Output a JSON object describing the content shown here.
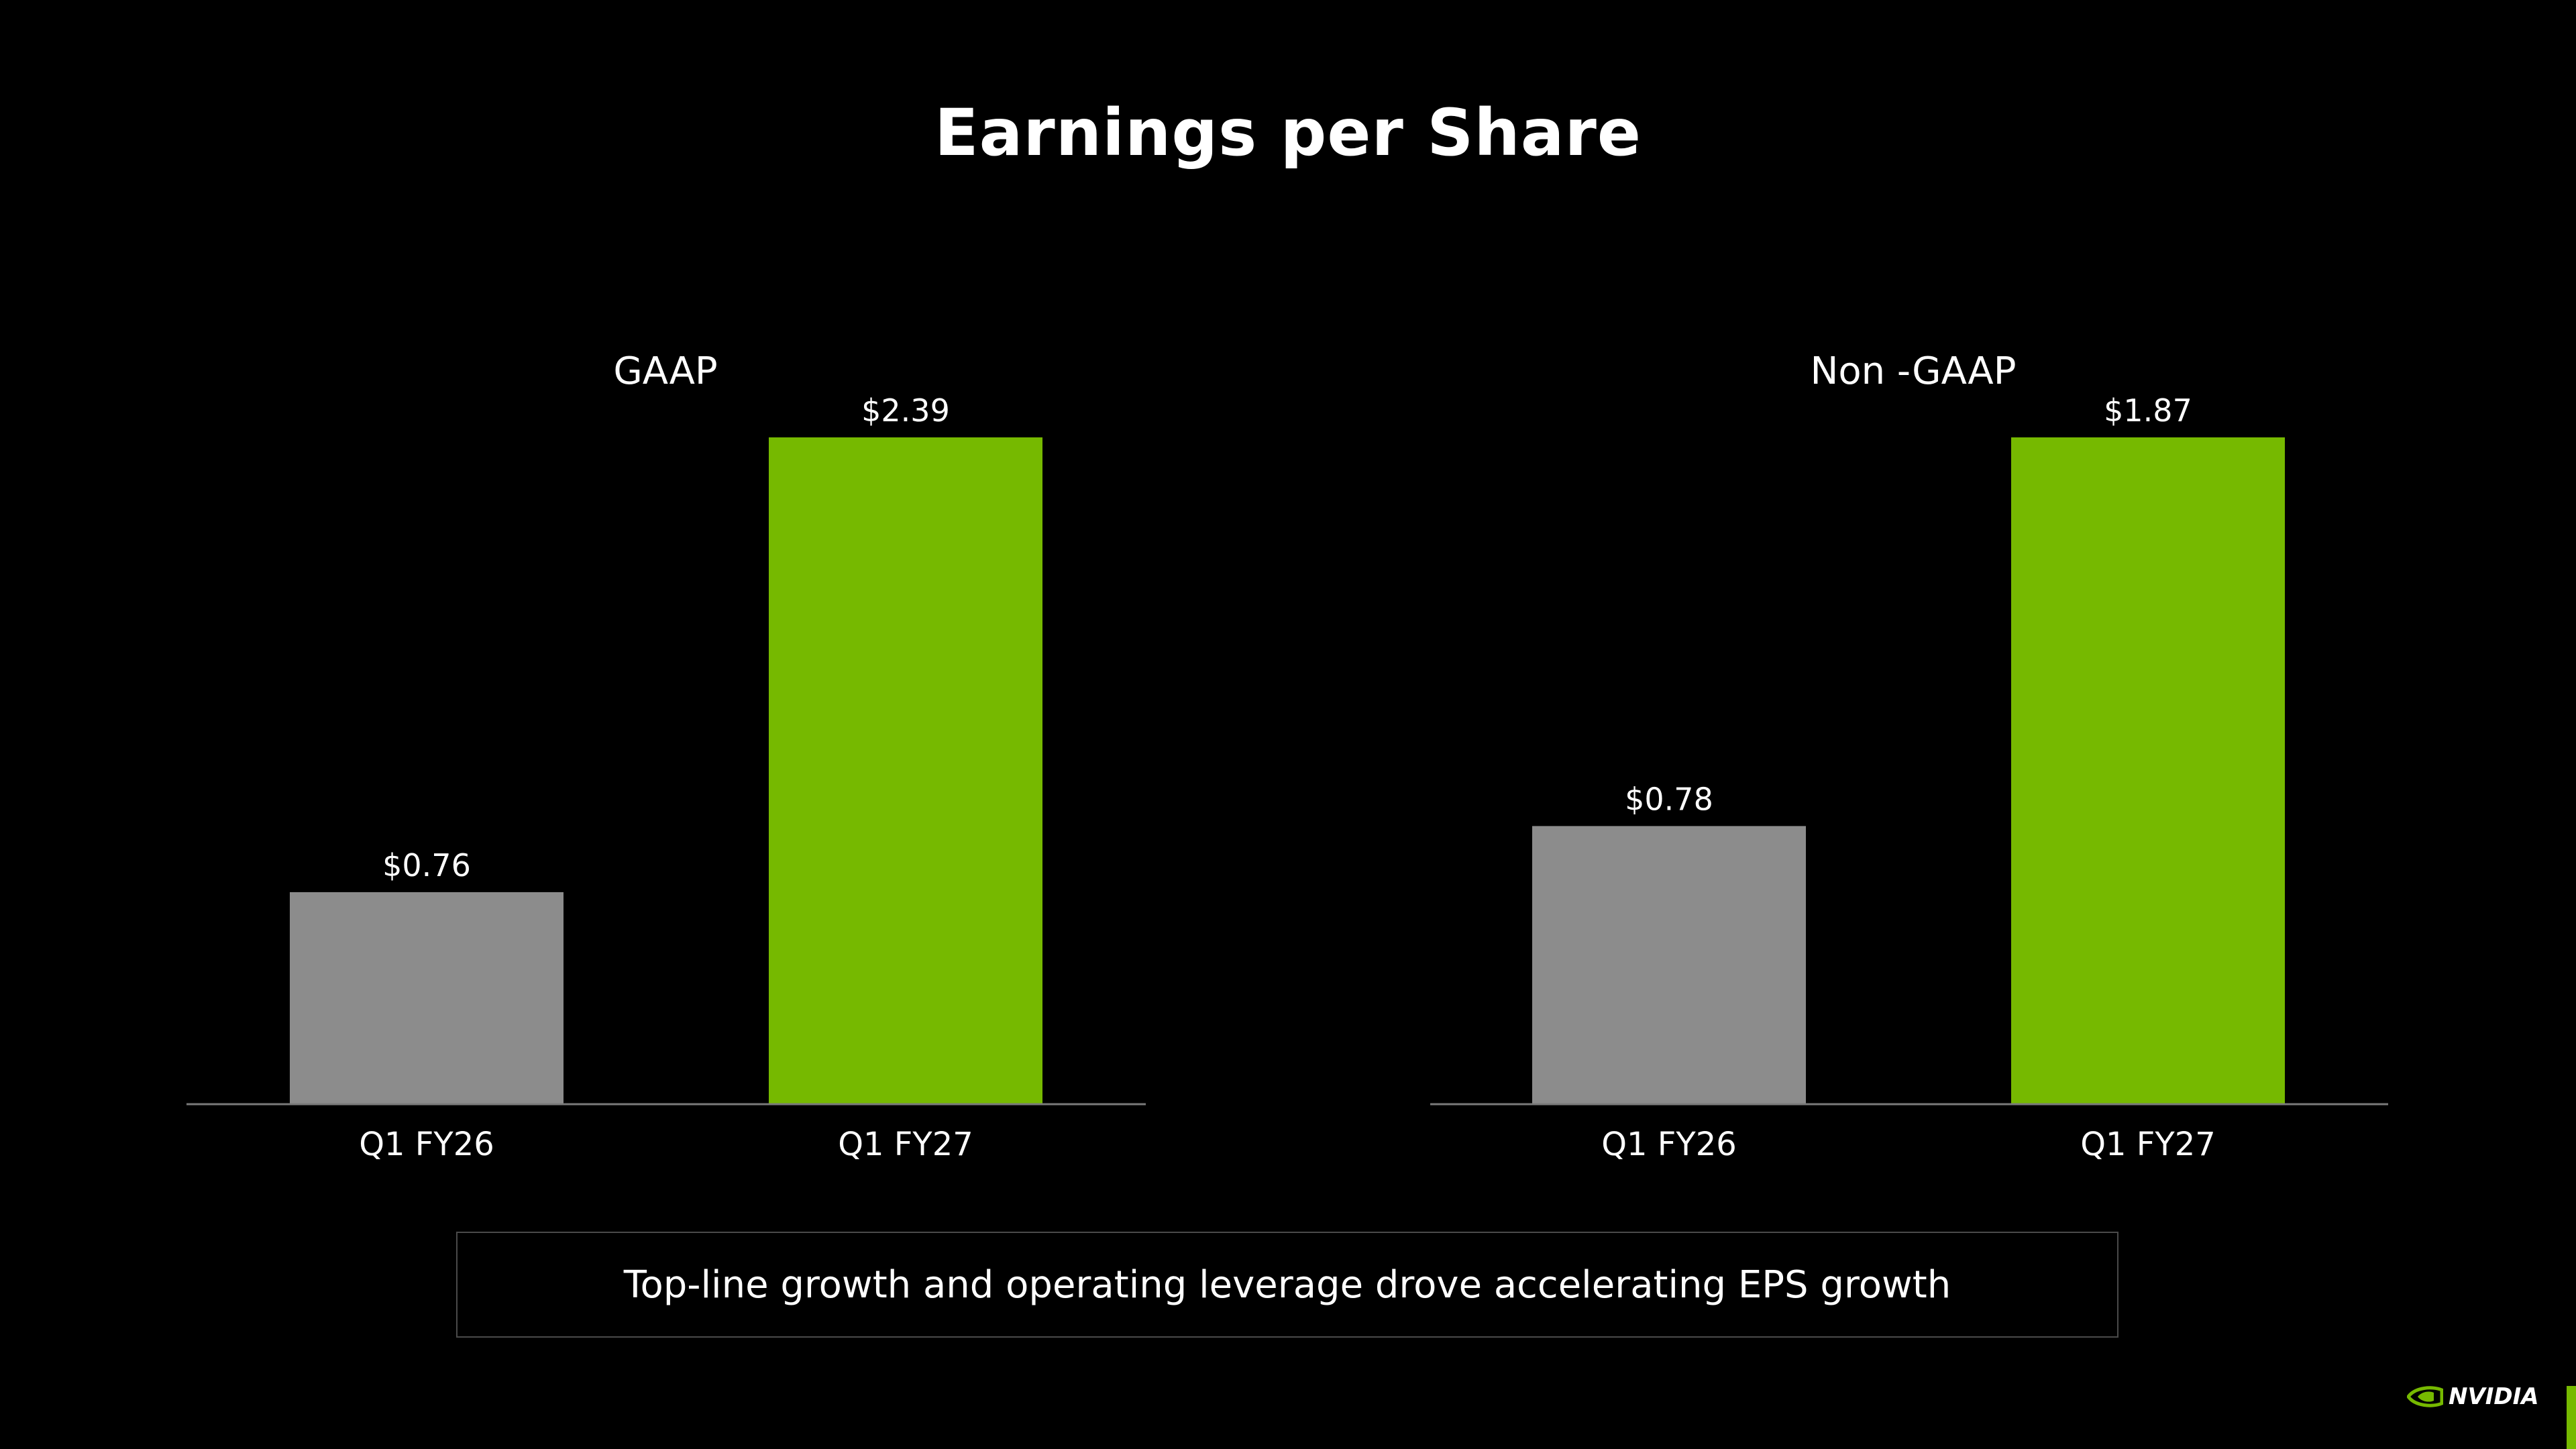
{
  "title": "Earnings per Share",
  "callout": "Top-line growth and operating leverage drove accelerating EPS growth",
  "brand": {
    "name": "NVIDIA",
    "logo_icon": "nvidia-eye-icon"
  },
  "colors": {
    "background": "#000000",
    "prior_bar": "#8c8c8c",
    "current_bar": "#76b900",
    "text": "#ffffff",
    "axis": "#7a7a7a"
  },
  "chart_data": [
    {
      "type": "bar",
      "title": "GAAP",
      "categories": [
        "Q1 FY26",
        "Q1 FY27"
      ],
      "values": [
        0.76,
        2.39
      ],
      "data_labels": [
        "$0.76",
        "$2.39"
      ],
      "ylim": [
        0,
        2.39
      ],
      "grid": false,
      "axis_line": true
    },
    {
      "type": "bar",
      "title": "Non -GAAP",
      "categories": [
        "Q1 FY26",
        "Q1 FY27"
      ],
      "values": [
        0.78,
        1.87
      ],
      "data_labels": [
        "$0.78",
        "$1.87"
      ],
      "ylim": [
        0,
        1.87
      ],
      "grid": false,
      "axis_line": true
    }
  ]
}
